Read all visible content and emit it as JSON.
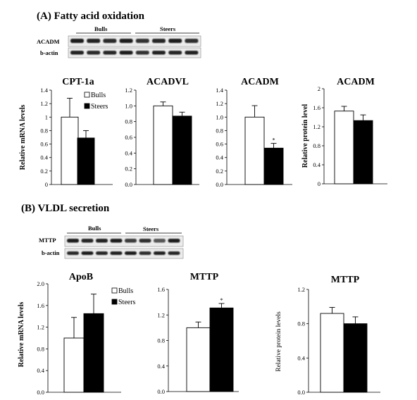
{
  "sections": [
    {
      "title": "(A) Fatty acid oxidation"
    },
    {
      "title": "(B) VLDL secretion"
    }
  ],
  "blots": [
    {
      "group_labels": [
        "Bulls",
        "Steers"
      ],
      "rows": [
        "ACADM",
        "b-actin"
      ]
    },
    {
      "group_labels": [
        "Bulls",
        "Steers"
      ],
      "rows": [
        "MTTP",
        "b-actin"
      ]
    }
  ],
  "legend": {
    "entries": [
      {
        "label": "Bulls",
        "color": "#ffffff"
      },
      {
        "label": "Steers",
        "color": "#000000"
      }
    ]
  },
  "chart_data": [
    {
      "type": "bar",
      "title": "CPT-1a",
      "ylabel": "Relative mRNA levels",
      "ylim": [
        0,
        1.4
      ],
      "yticks": [
        "0",
        "0.2",
        "0.4",
        "0.6",
        "0.8",
        "1",
        "1.2",
        "1.4"
      ],
      "categories": [
        "Bulls",
        "Steers"
      ],
      "values": [
        1.0,
        0.69
      ],
      "errors": [
        0.28,
        0.11
      ],
      "marks": [
        "",
        ""
      ],
      "show_legend": true
    },
    {
      "type": "bar",
      "title": "ACADVL",
      "ylabel": "",
      "ylim": [
        0,
        1.2
      ],
      "yticks": [
        "0.0",
        "0.2",
        "0.4",
        "0.6",
        "0.8",
        "1.0",
        "1.2"
      ],
      "categories": [
        "Bulls",
        "Steers"
      ],
      "values": [
        1.0,
        0.87
      ],
      "errors": [
        0.05,
        0.05
      ],
      "marks": [
        "",
        ""
      ],
      "show_legend": false
    },
    {
      "type": "bar",
      "title": "ACADM",
      "ylabel": "",
      "ylim": [
        0,
        1.4
      ],
      "yticks": [
        "0.0",
        "0.2",
        "0.4",
        "0.6",
        "0.8",
        "1.0",
        "1.2",
        "1.4"
      ],
      "categories": [
        "Bulls",
        "Steers"
      ],
      "values": [
        1.0,
        0.54
      ],
      "errors": [
        0.17,
        0.07
      ],
      "marks": [
        "",
        "*"
      ],
      "show_legend": false
    },
    {
      "type": "bar",
      "title": "ACADM",
      "ylabel": "Relative protein level",
      "ylim": [
        0,
        2
      ],
      "yticks": [
        "0",
        "0.4",
        "0.8",
        "1.2",
        "1.6",
        "2"
      ],
      "categories": [
        "Bulls",
        "Steers"
      ],
      "values": [
        1.53,
        1.33
      ],
      "errors": [
        0.1,
        0.12
      ],
      "marks": [
        "",
        ""
      ],
      "show_legend": false
    },
    {
      "type": "bar",
      "title": "ApoB",
      "ylabel": "Relative mRNA levels",
      "ylim": [
        0,
        2.0
      ],
      "yticks": [
        "0.0",
        "0.4",
        "0.8",
        "1.2",
        "1.6",
        "2.0"
      ],
      "categories": [
        "Bulls",
        "Steers"
      ],
      "values": [
        1.0,
        1.45
      ],
      "errors": [
        0.38,
        0.36
      ],
      "marks": [
        "",
        ""
      ],
      "show_legend": true
    },
    {
      "type": "bar",
      "title": "MTTP",
      "ylabel": "",
      "ylim": [
        0,
        1.6
      ],
      "yticks": [
        "0.0",
        "0.4",
        "0.8",
        "1.2",
        "1.6"
      ],
      "categories": [
        "Bulls",
        "Steers"
      ],
      "values": [
        1.0,
        1.31
      ],
      "errors": [
        0.09,
        0.07
      ],
      "marks": [
        "",
        "*"
      ],
      "show_legend": false
    },
    {
      "type": "bar",
      "title": "MTTP",
      "ylabel": "Relative protein levels",
      "ylim": [
        0,
        1.2
      ],
      "yticks": [
        "0.0",
        "0.4",
        "0.8",
        "1.2"
      ],
      "categories": [
        "Bulls",
        "Steers"
      ],
      "values": [
        0.92,
        0.8
      ],
      "errors": [
        0.07,
        0.08
      ],
      "marks": [
        "",
        ""
      ],
      "show_legend": false
    }
  ]
}
